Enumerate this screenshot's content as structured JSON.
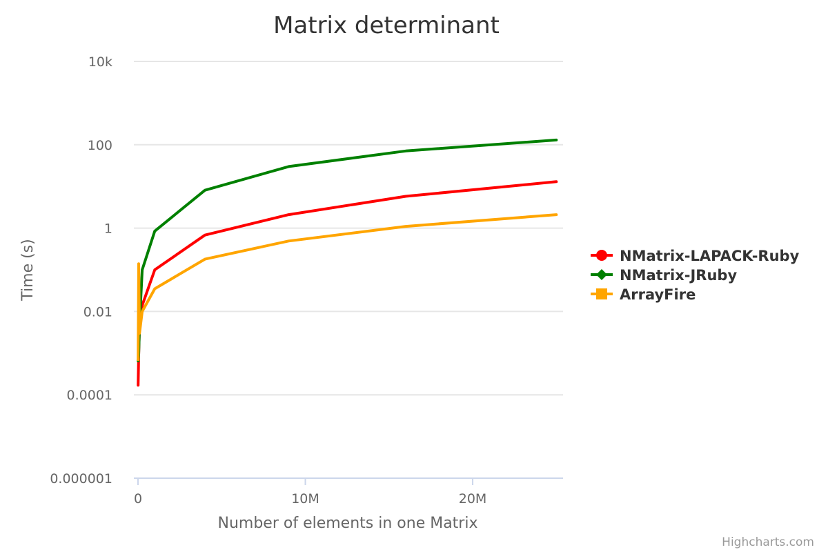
{
  "chart_data": {
    "type": "line",
    "title": "Matrix determinant",
    "xlabel": "Number of elements in one Matrix",
    "ylabel": "Time (s)",
    "y_scale": "log",
    "xlim": [
      0,
      25400000
    ],
    "ylim": [
      1e-06,
      10000
    ],
    "x_ticks": [
      {
        "value": 0,
        "label": "0"
      },
      {
        "value": 10000000,
        "label": "10M"
      },
      {
        "value": 20000000,
        "label": "20M"
      }
    ],
    "y_ticks": [
      {
        "value": 1e-06,
        "label": "0.000001"
      },
      {
        "value": 0.0001,
        "label": "0.0001"
      },
      {
        "value": 0.01,
        "label": "0.01"
      },
      {
        "value": 1,
        "label": "1"
      },
      {
        "value": 100,
        "label": "100"
      },
      {
        "value": 10000,
        "label": "10k"
      }
    ],
    "grid": true,
    "legend_position": "right",
    "series": [
      {
        "name": "NMatrix-LAPACK-Ruby",
        "color": "#ff0000",
        "marker": "circle",
        "points": [
          {
            "x": 10000,
            "y": 0.00017
          },
          {
            "x": 40000,
            "y": 0.0009
          },
          {
            "x": 90000,
            "y": 0.005
          },
          {
            "x": 250000,
            "y": 0.014
          },
          {
            "x": 1000000,
            "y": 0.1
          },
          {
            "x": 4000000,
            "y": 0.68
          },
          {
            "x": 9000000,
            "y": 2.1
          },
          {
            "x": 16000000,
            "y": 5.8
          },
          {
            "x": 25000000,
            "y": 13
          }
        ]
      },
      {
        "name": "NMatrix-JRuby",
        "color": "#008000",
        "marker": "diamond",
        "points": [
          {
            "x": 10000,
            "y": 0.00065
          },
          {
            "x": 40000,
            "y": 0.0009
          },
          {
            "x": 90000,
            "y": 0.005
          },
          {
            "x": 250000,
            "y": 0.1
          },
          {
            "x": 1000000,
            "y": 0.85
          },
          {
            "x": 4000000,
            "y": 8.1
          },
          {
            "x": 9000000,
            "y": 30
          },
          {
            "x": 16000000,
            "y": 71
          },
          {
            "x": 25000000,
            "y": 130
          }
        ]
      },
      {
        "name": "ArrayFire",
        "color": "#ffa500",
        "marker": "square",
        "points": [
          {
            "x": 10000,
            "y": 0.0007
          },
          {
            "x": 40000,
            "y": 0.14
          },
          {
            "x": 90000,
            "y": 0.003
          },
          {
            "x": 250000,
            "y": 0.01
          },
          {
            "x": 1000000,
            "y": 0.035
          },
          {
            "x": 4000000,
            "y": 0.18
          },
          {
            "x": 9000000,
            "y": 0.49
          },
          {
            "x": 16000000,
            "y": 1.1
          },
          {
            "x": 25000000,
            "y": 2.1
          }
        ]
      }
    ],
    "credits": "Highcharts.com"
  }
}
